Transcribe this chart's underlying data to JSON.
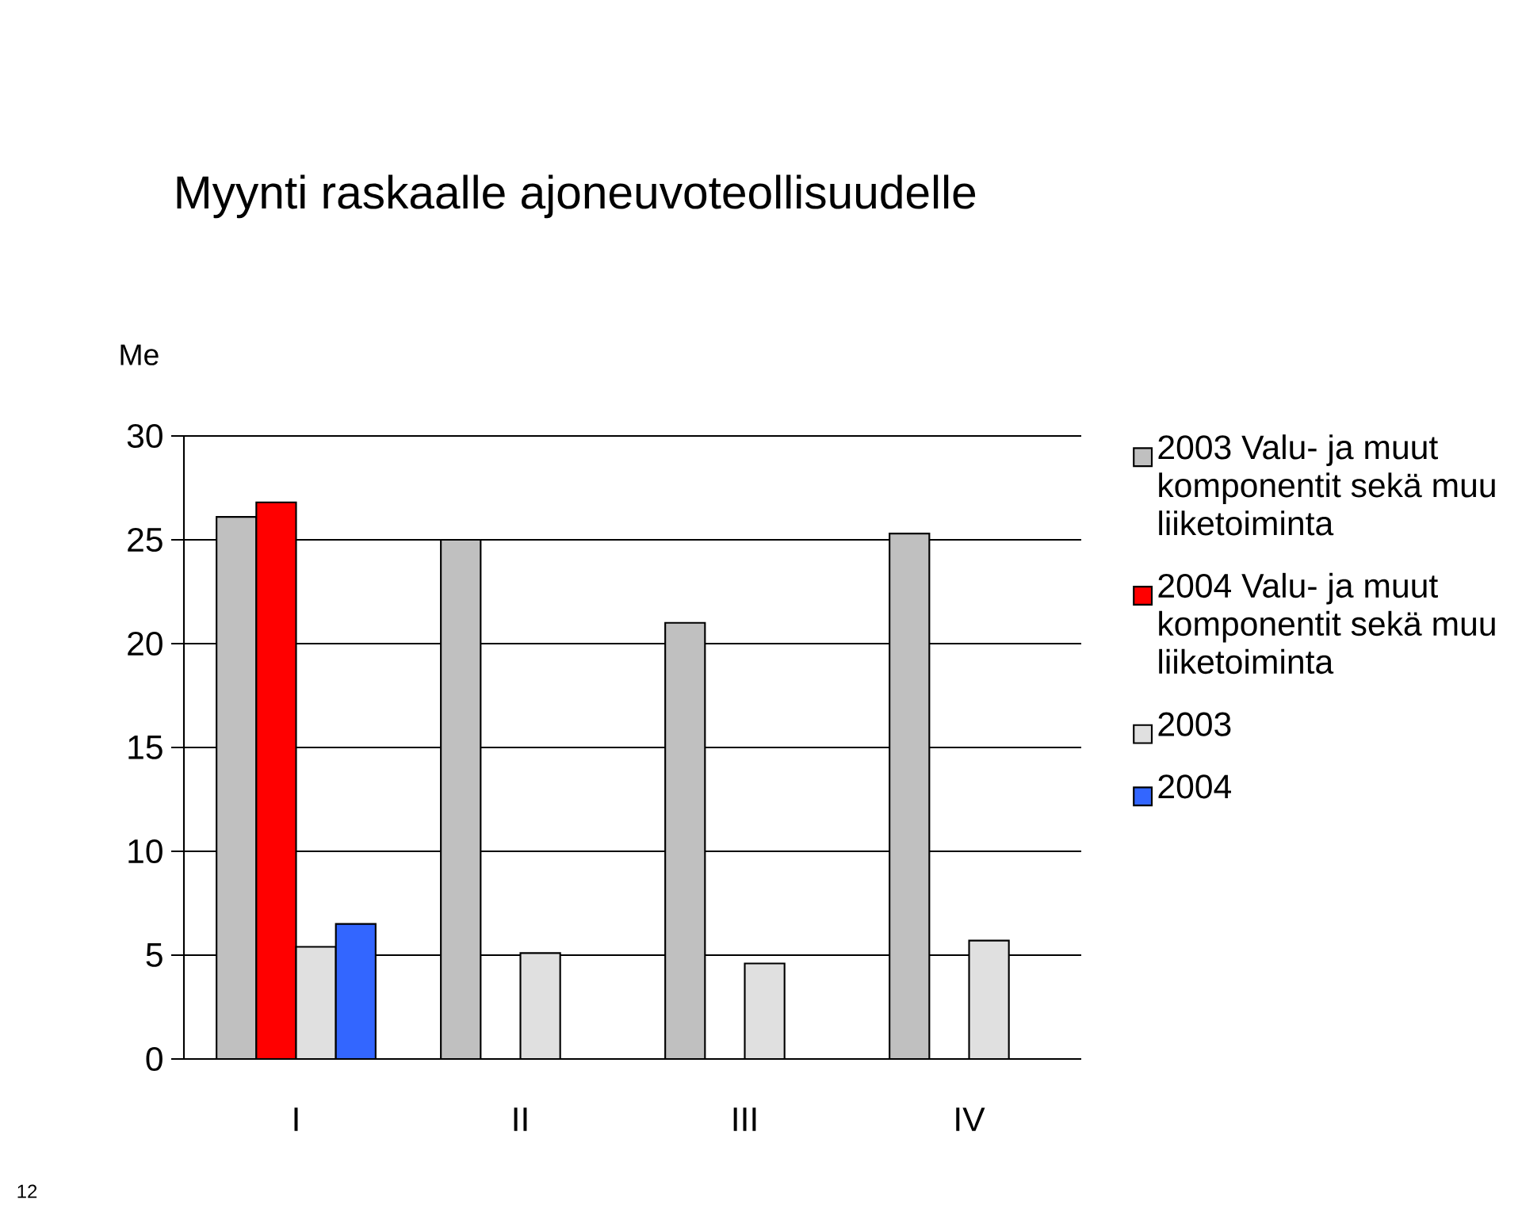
{
  "chart_data": {
    "type": "bar",
    "title": "Myynti raskaalle ajoneuvoteollisuudelle",
    "ylabel": "Me",
    "categories": [
      "I",
      "II",
      "III",
      "IV"
    ],
    "series": [
      {
        "name": "2003 Valu- ja muut komponentit sekä muu liiketoiminta",
        "color": "#c0c0c0",
        "values": [
          26.1,
          25.0,
          21.0,
          25.3
        ]
      },
      {
        "name": "2004 Valu- ja muut komponentit sekä muu liiketoiminta",
        "color": "#ff0000",
        "values": [
          26.8,
          null,
          null,
          null
        ]
      },
      {
        "name": "2003",
        "color": "#e0e0e0",
        "values": [
          5.4,
          5.1,
          4.6,
          5.7
        ]
      },
      {
        "name": "2004",
        "color": "#3366ff",
        "values": [
          6.5,
          null,
          null,
          null
        ]
      }
    ],
    "ylim": [
      0,
      30
    ],
    "yticks": [
      0,
      5,
      10,
      15,
      20,
      25,
      30
    ],
    "grid": "y",
    "legend": "right",
    "annotations": [
      "12"
    ]
  }
}
